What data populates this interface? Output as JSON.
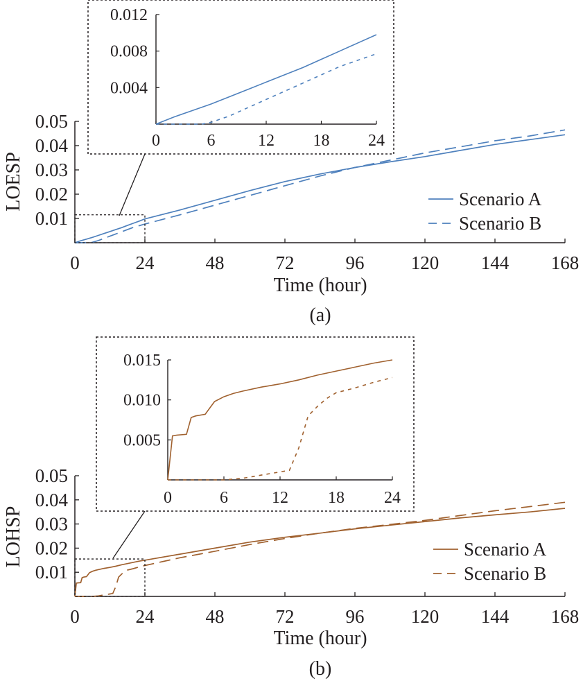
{
  "chart_data": [
    {
      "type": "line",
      "caption": "(a)",
      "xlabel": "Time (hour)",
      "ylabel": "LOESP",
      "xlim": [
        0,
        168
      ],
      "ylim": [
        0,
        0.05
      ],
      "xticks": [
        0,
        24,
        48,
        72,
        96,
        120,
        144,
        168
      ],
      "xtick_labels": [
        "0",
        "24",
        "48",
        "72",
        "96",
        "120",
        "144",
        "168"
      ],
      "yticks": [
        0.01,
        0.02,
        0.03,
        0.04,
        0.05
      ],
      "ytick_labels": [
        "0.01",
        "0.02",
        "0.03",
        "0.04",
        "0.05"
      ],
      "legend_position": "lower-right",
      "color": "#4f81bd",
      "series": [
        {
          "name": "Scenario A",
          "style": "solid",
          "x": [
            0,
            2,
            4,
            6,
            8,
            10,
            12,
            14,
            16,
            18,
            20,
            22,
            24,
            36,
            48,
            60,
            72,
            84,
            96,
            108,
            120,
            132,
            144,
            156,
            168
          ],
          "y": [
            0,
            0.0008,
            0.0015,
            0.0022,
            0.003,
            0.0038,
            0.0046,
            0.0054,
            0.0062,
            0.0071,
            0.008,
            0.0089,
            0.0098,
            0.0135,
            0.0175,
            0.0215,
            0.0252,
            0.0283,
            0.031,
            0.0333,
            0.0355,
            0.038,
            0.0405,
            0.0425,
            0.0445
          ]
        },
        {
          "name": "Scenario B",
          "style": "dashed",
          "x": [
            0,
            3,
            5,
            6,
            8,
            10,
            12,
            14,
            16,
            18,
            20,
            22,
            24,
            36,
            48,
            60,
            72,
            84,
            96,
            108,
            120,
            132,
            144,
            156,
            168
          ],
          "y": [
            0,
            0,
            0,
            0.0002,
            0.0009,
            0.0018,
            0.0027,
            0.0036,
            0.0045,
            0.0054,
            0.0063,
            0.007,
            0.0077,
            0.0115,
            0.0155,
            0.0195,
            0.0235,
            0.0275,
            0.031,
            0.034,
            0.037,
            0.0395,
            0.042,
            0.044,
            0.0465
          ]
        }
      ],
      "inset": {
        "xlim": [
          0,
          24
        ],
        "ylim": [
          0,
          0.012
        ],
        "xticks": [
          0,
          6,
          12,
          18,
          24
        ],
        "xtick_labels": [
          "0",
          "6",
          "12",
          "18",
          "24"
        ],
        "yticks": [
          0.004,
          0.008,
          0.012
        ],
        "ytick_labels": [
          "0.004",
          "0.008",
          "0.012"
        ]
      }
    },
    {
      "type": "line",
      "caption": "(b)",
      "xlabel": "Time (hour)",
      "ylabel": "LOHSP",
      "xlim": [
        0,
        168
      ],
      "ylim": [
        0,
        0.05
      ],
      "xticks": [
        0,
        24,
        48,
        72,
        96,
        120,
        144,
        168
      ],
      "xtick_labels": [
        "0",
        "24",
        "48",
        "72",
        "96",
        "120",
        "144",
        "168"
      ],
      "yticks": [
        0.01,
        0.02,
        0.03,
        0.04,
        0.05
      ],
      "ytick_labels": [
        "0.01",
        "0.02",
        "0.03",
        "0.04",
        "0.05"
      ],
      "legend_position": "lower-right",
      "color": "#a0612f",
      "series": [
        {
          "name": "Scenario A",
          "style": "solid",
          "x": [
            0,
            0.5,
            1,
            2,
            2.5,
            3,
            4,
            5,
            6,
            7,
            8,
            10,
            12,
            14,
            16,
            18,
            20,
            22,
            24,
            36,
            48,
            60,
            72,
            84,
            96,
            108,
            120,
            132,
            144,
            156,
            168
          ],
          "y": [
            0,
            0.0055,
            0.0056,
            0.0057,
            0.0078,
            0.008,
            0.0082,
            0.0098,
            0.0104,
            0.0108,
            0.0111,
            0.0116,
            0.012,
            0.0125,
            0.0131,
            0.0136,
            0.0141,
            0.0146,
            0.015,
            0.0175,
            0.02,
            0.0225,
            0.0245,
            0.0262,
            0.028,
            0.0295,
            0.031,
            0.0325,
            0.0338,
            0.035,
            0.0365
          ]
        },
        {
          "name": "Scenario B",
          "style": "dashed",
          "x": [
            0,
            6,
            8,
            10,
            12,
            13,
            14,
            15,
            16,
            17,
            18,
            20,
            22,
            24,
            36,
            48,
            60,
            72,
            84,
            96,
            108,
            120,
            132,
            144,
            156,
            168
          ],
          "y": [
            0,
            0,
            0.0002,
            0.0006,
            0.001,
            0.0012,
            0.004,
            0.008,
            0.0092,
            0.0102,
            0.0109,
            0.0115,
            0.0122,
            0.0128,
            0.016,
            0.0187,
            0.0215,
            0.024,
            0.0262,
            0.0282,
            0.0298,
            0.0315,
            0.0335,
            0.0355,
            0.0372,
            0.039
          ]
        }
      ],
      "inset": {
        "xlim": [
          0,
          24
        ],
        "ylim": [
          0,
          0.015
        ],
        "xticks": [
          0,
          6,
          12,
          18,
          24
        ],
        "xtick_labels": [
          "0",
          "6",
          "12",
          "18",
          "24"
        ],
        "yticks": [
          0.005,
          0.01,
          0.015
        ],
        "ytick_labels": [
          "0.005",
          "0.010",
          "0.015"
        ]
      }
    }
  ]
}
